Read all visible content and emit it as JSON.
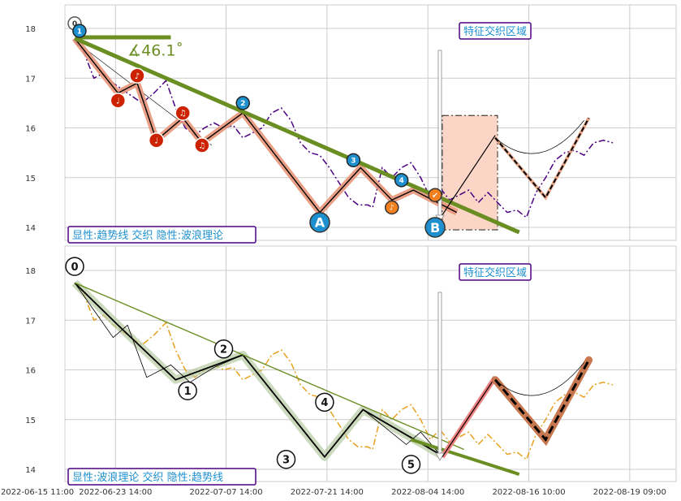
{
  "chart_data": [
    {
      "type": "line",
      "ylim": [
        13.75,
        18.5
      ],
      "yticks": [
        "14",
        "15",
        "16",
        "17",
        "18"
      ],
      "grid": true,
      "price_series": [
        {
          "x": 0,
          "y": 17.75
        },
        {
          "x": 4,
          "y": 17.5
        },
        {
          "x": 8,
          "y": 17.0
        },
        {
          "x": 12,
          "y": 17.1
        },
        {
          "x": 16,
          "y": 16.9
        },
        {
          "x": 22,
          "y": 16.7
        },
        {
          "x": 28,
          "y": 16.5
        },
        {
          "x": 33,
          "y": 16.7
        },
        {
          "x": 38,
          "y": 16.95
        },
        {
          "x": 42,
          "y": 16.4
        },
        {
          "x": 46,
          "y": 16.0
        },
        {
          "x": 50,
          "y": 15.85
        },
        {
          "x": 54,
          "y": 16.0
        },
        {
          "x": 58,
          "y": 16.1
        },
        {
          "x": 62,
          "y": 16.0
        },
        {
          "x": 66,
          "y": 16.05
        },
        {
          "x": 70,
          "y": 15.8
        },
        {
          "x": 74,
          "y": 15.9
        },
        {
          "x": 78,
          "y": 16.0
        },
        {
          "x": 82,
          "y": 16.3
        },
        {
          "x": 86,
          "y": 16.4
        },
        {
          "x": 90,
          "y": 16.15
        },
        {
          "x": 94,
          "y": 15.7
        },
        {
          "x": 98,
          "y": 15.5
        },
        {
          "x": 102,
          "y": 15.45
        },
        {
          "x": 106,
          "y": 15.2
        },
        {
          "x": 110,
          "y": 14.9
        },
        {
          "x": 114,
          "y": 14.6
        },
        {
          "x": 118,
          "y": 14.45
        },
        {
          "x": 122,
          "y": 14.45
        },
        {
          "x": 124,
          "y": 14.4
        },
        {
          "x": 128,
          "y": 15.2
        },
        {
          "x": 132,
          "y": 15.0
        },
        {
          "x": 136,
          "y": 15.2
        },
        {
          "x": 140,
          "y": 15.3
        },
        {
          "x": 144,
          "y": 15.0
        },
        {
          "x": 148,
          "y": 14.6
        },
        {
          "x": 152,
          "y": 14.8
        },
        {
          "x": 156,
          "y": 14.55
        },
        {
          "x": 160,
          "y": 14.65
        },
        {
          "x": 164,
          "y": 14.75
        },
        {
          "x": 168,
          "y": 14.5
        },
        {
          "x": 172,
          "y": 14.7
        },
        {
          "x": 176,
          "y": 14.5
        },
        {
          "x": 180,
          "y": 14.3
        },
        {
          "x": 184,
          "y": 14.35
        },
        {
          "x": 188,
          "y": 14.2
        },
        {
          "x": 192,
          "y": 14.7
        },
        {
          "x": 196,
          "y": 15.0
        },
        {
          "x": 200,
          "y": 15.35
        },
        {
          "x": 204,
          "y": 15.5
        },
        {
          "x": 208,
          "y": 15.55
        },
        {
          "x": 212,
          "y": 15.45
        },
        {
          "x": 216,
          "y": 15.7
        },
        {
          "x": 220,
          "y": 15.75
        },
        {
          "x": 224,
          "y": 15.7
        }
      ],
      "wave_points": [
        {
          "x": 0,
          "y": 17.8
        },
        {
          "x": 18,
          "y": 16.7
        },
        {
          "x": 26,
          "y": 16.9
        },
        {
          "x": 34,
          "y": 15.75
        },
        {
          "x": 45,
          "y": 16.2
        },
        {
          "x": 53,
          "y": 15.7
        },
        {
          "x": 70,
          "y": 16.3
        },
        {
          "x": 102,
          "y": 14.3
        },
        {
          "x": 119,
          "y": 15.2
        },
        {
          "x": 132,
          "y": 14.55
        },
        {
          "x": 141,
          "y": 14.75
        },
        {
          "x": 159,
          "y": 14.3
        }
      ],
      "note_badges": [
        {
          "x": 18,
          "y": 16.55,
          "label": "♩"
        },
        {
          "x": 26,
          "y": 17.05,
          "label": "♪"
        },
        {
          "x": 34,
          "y": 15.75,
          "label": "♩"
        },
        {
          "x": 45,
          "y": 16.3,
          "label": "♫"
        },
        {
          "x": 53,
          "y": 15.65,
          "label": "♫"
        }
      ],
      "orange_badges": [
        {
          "x": 132,
          "y": 14.4,
          "label": "♪"
        },
        {
          "x": 150,
          "y": 14.65,
          "label": "✔"
        }
      ],
      "wave_badges": [
        {
          "x": 2,
          "y": 17.95,
          "label": "1"
        },
        {
          "x": 70,
          "y": 16.5,
          "label": "2"
        },
        {
          "x": 116,
          "y": 15.35,
          "label": "3"
        },
        {
          "x": 136,
          "y": 14.95,
          "label": "4"
        }
      ],
      "origin_badge": {
        "x": 0,
        "y": 18.1,
        "label": "0"
      },
      "big_badges": [
        {
          "x": 102,
          "y": 14.1,
          "label": "A"
        },
        {
          "x": 150,
          "y": 14.0,
          "label": "B"
        }
      ],
      "trendline": {
        "x": [
          0,
          185
        ],
        "y": [
          17.8,
          13.9
        ]
      },
      "flat_line": {
        "x": [
          2,
          40
        ],
        "y": [
          17.82,
          17.82
        ]
      },
      "angle_label": "∡46.1˚",
      "thin_line": {
        "x": [
          0,
          57
        ],
        "y": [
          17.75,
          15.65
        ]
      },
      "projection_up": {
        "x": [
          153,
          175
        ],
        "y": [
          14.25,
          15.85
        ]
      },
      "projection_zigzag": {
        "x": [
          175,
          196,
          214
        ],
        "y": [
          15.8,
          14.6,
          16.2
        ]
      },
      "projection_arc": {
        "x": [
          175,
          212
        ],
        "y": [
          15.8,
          16.15
        ],
        "bottom": 15.5
      },
      "feature_zone": {
        "x": [
          153,
          176
        ],
        "y": [
          13.95,
          16.25
        ]
      },
      "zone_arrow_x": 152,
      "zone_label": "特征交织区域",
      "info_label": "显性:趋势线 交织 隐性:波浪理论"
    },
    {
      "type": "line",
      "ylim": [
        13.75,
        18.5
      ],
      "yticks": [
        "14",
        "15",
        "16",
        "17",
        "18"
      ],
      "grid": true,
      "trendline": {
        "x": [
          0,
          185
        ],
        "y": [
          17.8,
          13.9
        ]
      },
      "thin_trendline": {
        "x": [
          0,
          162
        ],
        "y": [
          17.75,
          14.4
        ]
      },
      "wave_path": [
        {
          "x": 0,
          "y": 17.75
        },
        {
          "x": 18,
          "y": 16.9
        },
        {
          "x": 42,
          "y": 15.8
        },
        {
          "x": 70,
          "y": 16.3
        },
        {
          "x": 104,
          "y": 14.25
        },
        {
          "x": 120,
          "y": 15.2
        },
        {
          "x": 152,
          "y": 14.3
        }
      ],
      "thin_path": [
        {
          "x": 0,
          "y": 17.75
        },
        {
          "x": 16,
          "y": 16.65
        },
        {
          "x": 22,
          "y": 16.9
        },
        {
          "x": 30,
          "y": 15.85
        },
        {
          "x": 40,
          "y": 16.1
        },
        {
          "x": 48,
          "y": 15.75
        },
        {
          "x": 58,
          "y": 16.05
        },
        {
          "x": 70,
          "y": 16.3
        },
        {
          "x": 104,
          "y": 14.25
        },
        {
          "x": 120,
          "y": 15.2
        },
        {
          "x": 138,
          "y": 14.5
        },
        {
          "x": 144,
          "y": 14.75
        },
        {
          "x": 152,
          "y": 14.3
        }
      ],
      "wave_labels": [
        {
          "x": 0,
          "y": 18.08,
          "label": "0"
        },
        {
          "x": 47,
          "y": 15.58,
          "label": "1"
        },
        {
          "x": 62,
          "y": 16.42,
          "label": "2"
        },
        {
          "x": 88,
          "y": 14.2,
          "label": "3"
        },
        {
          "x": 104,
          "y": 15.35,
          "label": "4"
        },
        {
          "x": 140,
          "y": 14.1,
          "label": "5"
        }
      ],
      "projection_up": {
        "x": [
          153,
          175
        ],
        "y": [
          14.25,
          15.85
        ]
      },
      "projection_zigzag": {
        "x": [
          175,
          196,
          214
        ],
        "y": [
          15.8,
          14.6,
          16.2
        ]
      },
      "projection_arc": {
        "x": [
          175,
          212
        ],
        "y": [
          15.8,
          16.15
        ],
        "bottom": 15.5
      },
      "zone_arrow_x": 152,
      "zone_label": "特征交织区域",
      "info_label": "显性:波浪理论 交织 隐性:趋势线",
      "xticks": [
        {
          "x": -23,
          "label": "2022-06-15 11:00"
        },
        {
          "x": 17,
          "label": "2022-06-23 14:00"
        },
        {
          "x": 63,
          "label": "2022-07-07 14:00"
        },
        {
          "x": 105,
          "label": "2022-07-21 14:00"
        },
        {
          "x": 147,
          "label": "2022-08-04 14:00"
        },
        {
          "x": 189,
          "label": "2022-08-16 10:00"
        },
        {
          "x": 231,
          "label": "2022-08-19 09:00"
        }
      ]
    }
  ],
  "colors": {
    "trend": "#6b8e23",
    "wave": "#e8967a",
    "price_dash": "#4b0082",
    "price_dash_bottom": "#e8a020",
    "badge_blue": "#1e90d0",
    "badge_red": "#cc2200",
    "badge_orange": "#f08020",
    "zone_fill": "#fbd5c6",
    "label_border": "#4b0082",
    "label_text": "#1e90d0"
  }
}
